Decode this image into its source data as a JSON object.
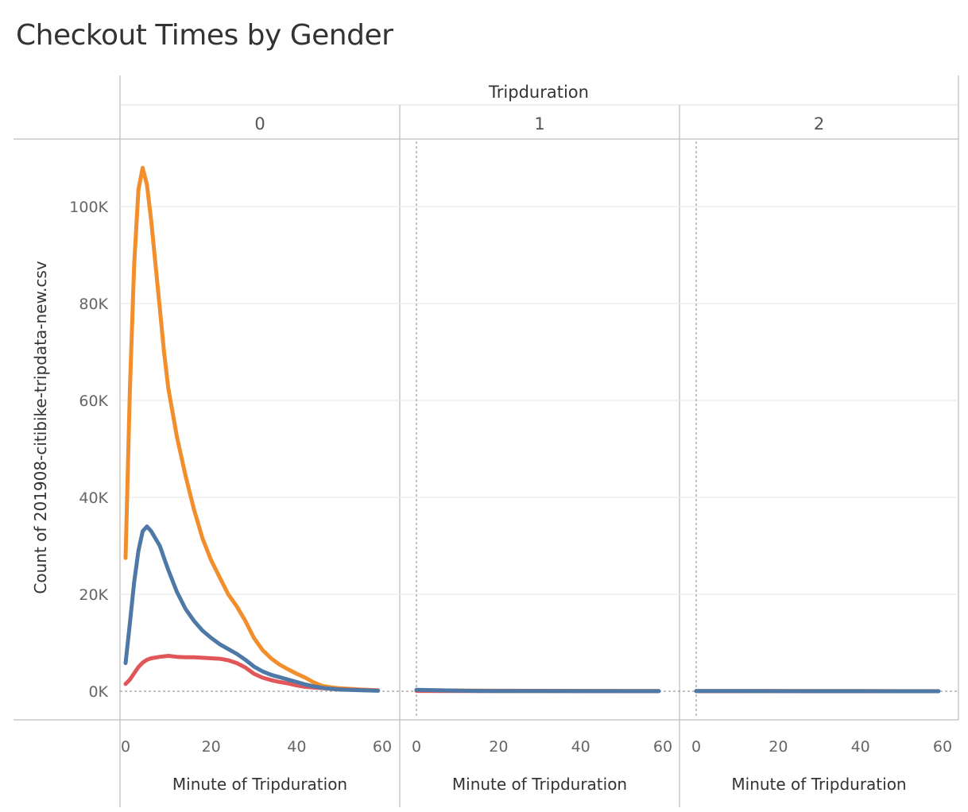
{
  "title": "Checkout Times by Gender",
  "chart_data": {
    "type": "line",
    "title": "Checkout Times by Gender",
    "column_header": "Tripduration",
    "panels": [
      "0",
      "1",
      "2"
    ],
    "xlabel": "Minute of Tripduration",
    "ylabel": "Count of 201908-citibike-tripdata-new.csv",
    "xlim": [
      0,
      60
    ],
    "ylim": [
      0,
      110000
    ],
    "x_ticks": [
      0,
      20,
      40,
      60
    ],
    "x_tick_labels": [
      "0",
      "20",
      "40",
      "60"
    ],
    "y_ticks": [
      0,
      20000,
      40000,
      60000,
      80000,
      100000
    ],
    "y_tick_labels": [
      "0K",
      "20K",
      "40K",
      "60K",
      "80K",
      "100K"
    ],
    "grid": true,
    "series": [
      {
        "color": "#F28E2B",
        "panels": [
          {
            "x": [
              0,
              1,
              2,
              3,
              4,
              5,
              6,
              7,
              8,
              9,
              10,
              12,
              14,
              16,
              18,
              20,
              22,
              24,
              26,
              28,
              30,
              32,
              34,
              36,
              38,
              40,
              42,
              44,
              46,
              48,
              50,
              55,
              59
            ],
            "y": [
              27500,
              62000,
              88000,
              103500,
              108000,
              104500,
              97000,
              88000,
              79000,
              70000,
              62500,
              52500,
              44500,
              37500,
              31500,
              27000,
              23500,
              20000,
              17500,
              14500,
              11000,
              8500,
              6800,
              5500,
              4500,
              3600,
              2800,
              1800,
              1100,
              800,
              600,
              350,
              200
            ]
          },
          {
            "x": [
              0,
              10,
              20,
              30,
              40,
              50,
              59
            ],
            "y": [
              200,
              150,
              100,
              80,
              60,
              50,
              40
            ]
          },
          {
            "x": [
              0,
              10,
              20,
              30,
              40,
              50,
              59
            ],
            "y": [
              50,
              40,
              35,
              30,
              25,
              20,
              15
            ]
          }
        ]
      },
      {
        "color": "#E15759",
        "panels": [
          {
            "x": [
              0,
              1,
              2,
              3,
              4,
              5,
              6,
              8,
              10,
              12,
              14,
              16,
              18,
              20,
              22,
              24,
              26,
              28,
              30,
              32,
              34,
              36,
              38,
              40,
              42,
              45,
              50,
              55,
              59
            ],
            "y": [
              1500,
              2400,
              3700,
              5000,
              5900,
              6500,
              6800,
              7100,
              7300,
              7100,
              7000,
              7000,
              6900,
              6800,
              6700,
              6400,
              5800,
              4900,
              3600,
              2800,
              2300,
              1900,
              1600,
              1200,
              900,
              700,
              400,
              250,
              150
            ]
          },
          {
            "x": [
              0,
              10,
              20,
              30,
              40,
              50,
              59
            ],
            "y": [
              60,
              50,
              40,
              30,
              25,
              20,
              15
            ]
          },
          {
            "x": [
              0,
              10,
              20,
              30,
              40,
              50,
              59
            ],
            "y": [
              15,
              12,
              10,
              8,
              6,
              5,
              4
            ]
          }
        ]
      },
      {
        "color": "#4E79A7",
        "panels": [
          {
            "x": [
              0,
              1,
              2,
              3,
              4,
              5,
              6,
              7,
              8,
              9,
              10,
              12,
              14,
              16,
              18,
              20,
              22,
              24,
              26,
              28,
              30,
              32,
              34,
              36,
              38,
              40,
              42,
              44,
              46,
              48,
              50,
              55,
              59
            ],
            "y": [
              5800,
              14000,
              22500,
              29000,
              33000,
              34000,
              33000,
              31500,
              30000,
              27500,
              25000,
              20500,
              17000,
              14500,
              12500,
              11000,
              9700,
              8700,
              7700,
              6500,
              5100,
              4100,
              3400,
              2900,
              2400,
              1900,
              1400,
              1000,
              700,
              500,
              350,
              200,
              100
            ]
          },
          {
            "x": [
              0,
              5,
              10,
              15,
              20,
              30,
              40,
              50,
              59
            ],
            "y": [
              300,
              200,
              120,
              70,
              50,
              30,
              20,
              15,
              10
            ]
          },
          {
            "x": [
              0,
              10,
              20,
              30,
              40,
              50,
              59
            ],
            "y": [
              30,
              25,
              20,
              15,
              10,
              8,
              5
            ]
          }
        ]
      }
    ]
  }
}
